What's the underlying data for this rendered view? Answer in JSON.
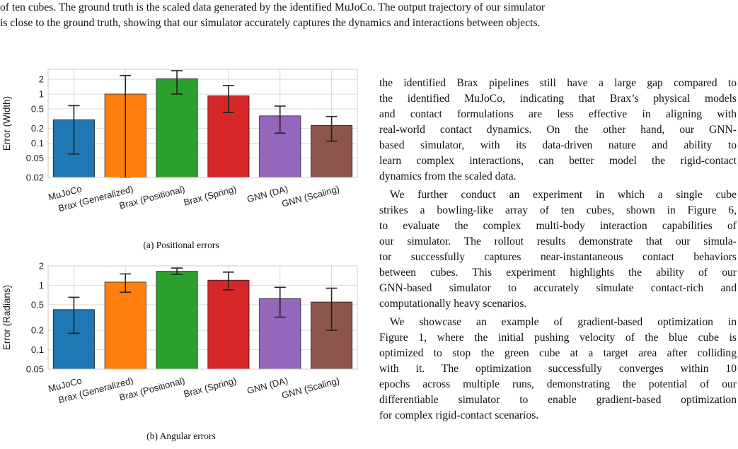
{
  "top_caption_lines": [
    "of ten cubes. The ground truth is the scaled data generated by the identified MuJoCo. The output trajectory of our simulator",
    "is close to the ground truth, showing that our simulator accurately captures the dynamics and interactions between objects."
  ],
  "figures": {
    "a": {
      "caption": "(a) Positional errors"
    },
    "b": {
      "caption": "(b) Angular errors"
    }
  },
  "chart_data": [
    {
      "type": "bar",
      "title": "",
      "xlabel": "",
      "ylabel": "Error (Width)",
      "yscale": "log",
      "ylim": [
        0.02,
        3.2
      ],
      "yticks": [
        0.02,
        0.05,
        0.1,
        0.2,
        0.5,
        1,
        2
      ],
      "ytick_labels": [
        "0.02",
        "0.05",
        "0.1",
        "0.2",
        "0.5",
        "1",
        "2"
      ],
      "grid": true,
      "categories": [
        "MuJoCo",
        "Brax (Generalized)",
        "Brax (Positional)",
        "Brax (Spring)",
        "GNN (DA)",
        "GNN (Scaling)"
      ],
      "values": [
        0.3,
        1.0,
        2.05,
        0.92,
        0.36,
        0.23
      ],
      "err_low": [
        0.06,
        0.02,
        1.0,
        0.42,
        0.16,
        0.11
      ],
      "err_high": [
        0.58,
        2.4,
        3.0,
        1.5,
        0.57,
        0.35
      ],
      "colors": [
        "#1f77b4",
        "#ff7f0e",
        "#2ca02c",
        "#d62728",
        "#9467bd",
        "#8c564b"
      ]
    },
    {
      "type": "bar",
      "title": "",
      "xlabel": "",
      "ylabel": "Error (Radians)",
      "yscale": "log",
      "ylim": [
        0.05,
        2.0
      ],
      "yticks": [
        0.05,
        0.1,
        0.2,
        0.5,
        1,
        2
      ],
      "ytick_labels": [
        "0.05",
        "0.1",
        "0.2",
        "0.5",
        "1",
        "2"
      ],
      "grid": true,
      "categories": [
        "MuJoCo",
        "Brax (Generalized)",
        "Brax (Positional)",
        "Brax (Spring)",
        "GNN (DA)",
        "GNN (Scaling)"
      ],
      "values": [
        0.42,
        1.12,
        1.65,
        1.2,
        0.62,
        0.55
      ],
      "err_low": [
        0.18,
        0.78,
        1.48,
        0.85,
        0.32,
        0.2
      ],
      "err_high": [
        0.65,
        1.5,
        1.85,
        1.6,
        0.93,
        0.9
      ],
      "colors": [
        "#1f77b4",
        "#ff7f0e",
        "#2ca02c",
        "#d62728",
        "#9467bd",
        "#8c564b"
      ]
    }
  ],
  "body_paragraphs": [
    {
      "indent": false,
      "lines": [
        "the identified Brax pipelines still have a large gap compared to",
        "the identified MuJoCo, indicating that Brax’s physical models",
        "and contact formulations are less effective in aligning with",
        "real-world contact dynamics. On the other hand, our GNN-",
        "based simulator, with its data-driven nature and ability to",
        "learn complex interactions, can better model the rigid-contact",
        "dynamics from the scaled data."
      ]
    },
    {
      "indent": true,
      "lines": [
        "We further conduct an experiment in which a single cube",
        "strikes a bowling-like array of ten cubes, shown in Figure 6,",
        "to evaluate the complex multi-body interaction capabilities of",
        "our simulator. The rollout results demonstrate that our simula-",
        "tor successfully captures near-instantaneous contact behaviors",
        "between cubes. This experiment highlights the ability of our",
        "GNN-based simulator to accurately simulate contact-rich and",
        "computationally heavy scenarios."
      ]
    },
    {
      "indent": true,
      "lines": [
        "We showcase an example of gradient-based optimization in",
        "Figure 1, where the initial pushing velocity of the blue cube is",
        "optimized to stop the green cube at a target area after colliding",
        "with it. The optimization successfully converges within 10",
        "epochs across multiple runs, demonstrating the potential of our",
        "differentiable simulator to enable gradient-based optimization",
        "for complex rigid-contact scenarios."
      ]
    }
  ]
}
